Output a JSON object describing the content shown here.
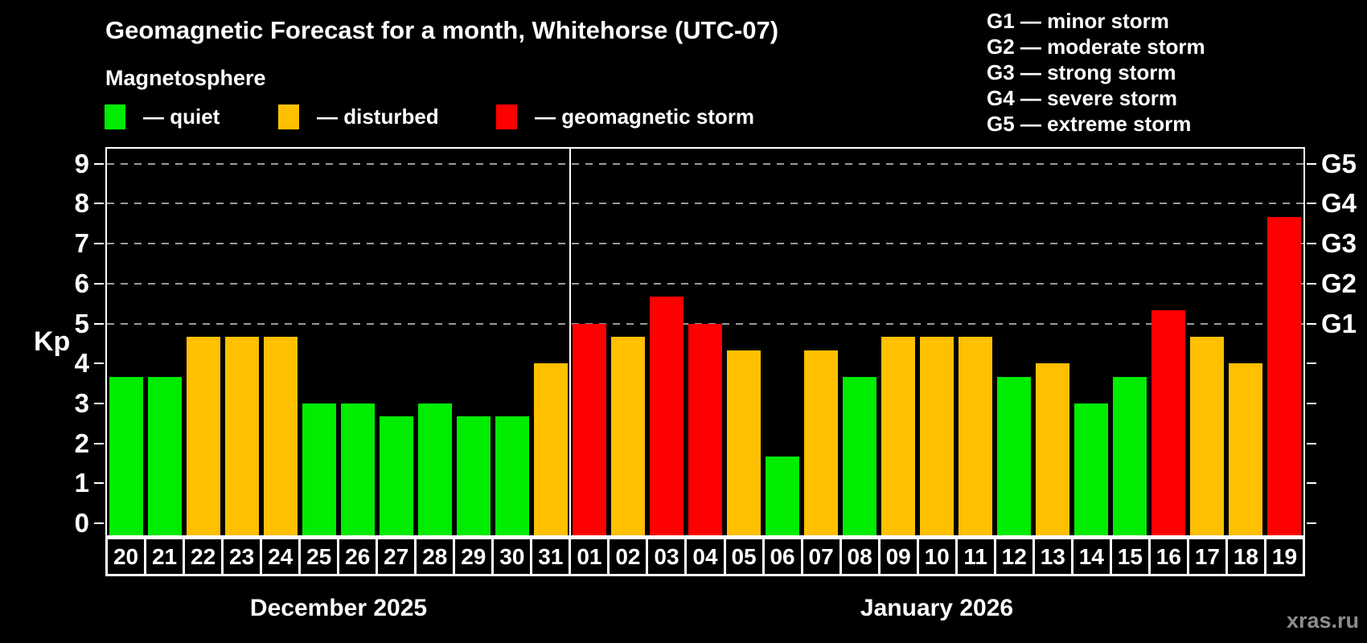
{
  "watermark": "xras.ru",
  "chart_data": {
    "type": "bar",
    "title": "Geomagnetic Forecast for a month, Whitehorse (UTC-07)",
    "subtitle": "Magnetosphere",
    "ylabel": "Kp",
    "ylim": [
      0,
      9.4
    ],
    "yticks": [
      0,
      1,
      2,
      3,
      4,
      5,
      6,
      7,
      8,
      9
    ],
    "grid_kp": [
      5,
      6,
      7,
      8,
      9
    ],
    "grid_on": true,
    "legend_position": "top-left",
    "legend": [
      {
        "status": "quiet",
        "label": "— quiet",
        "color": "#00ec00"
      },
      {
        "status": "disturbed",
        "label": "— disturbed",
        "color": "#ffc000"
      },
      {
        "status": "storm",
        "label": "— geomagnetic storm",
        "color": "#ff0000"
      }
    ],
    "g_legend": [
      {
        "code": "G1",
        "label": "G1 — minor storm",
        "kp": 5
      },
      {
        "code": "G2",
        "label": "G2 — moderate storm",
        "kp": 6
      },
      {
        "code": "G3",
        "label": "G3 — strong storm",
        "kp": 7
      },
      {
        "code": "G4",
        "label": "G4 — severe storm",
        "kp": 8
      },
      {
        "code": "G5",
        "label": "G5 — extreme storm",
        "kp": 9
      }
    ],
    "months": [
      {
        "label": "December 2025",
        "points": [
          {
            "day": "20",
            "kp": 3.67,
            "status": "quiet"
          },
          {
            "day": "21",
            "kp": 3.67,
            "status": "quiet"
          },
          {
            "day": "22",
            "kp": 4.67,
            "status": "disturbed"
          },
          {
            "day": "23",
            "kp": 4.67,
            "status": "disturbed"
          },
          {
            "day": "24",
            "kp": 4.67,
            "status": "disturbed"
          },
          {
            "day": "25",
            "kp": 3.0,
            "status": "quiet"
          },
          {
            "day": "26",
            "kp": 3.0,
            "status": "quiet"
          },
          {
            "day": "27",
            "kp": 2.67,
            "status": "quiet"
          },
          {
            "day": "28",
            "kp": 3.0,
            "status": "quiet"
          },
          {
            "day": "29",
            "kp": 2.67,
            "status": "quiet"
          },
          {
            "day": "30",
            "kp": 2.67,
            "status": "quiet"
          },
          {
            "day": "31",
            "kp": 4.0,
            "status": "disturbed"
          }
        ]
      },
      {
        "label": "January 2026",
        "points": [
          {
            "day": "01",
            "kp": 5.0,
            "status": "storm"
          },
          {
            "day": "02",
            "kp": 4.67,
            "status": "disturbed"
          },
          {
            "day": "03",
            "kp": 5.67,
            "status": "storm"
          },
          {
            "day": "04",
            "kp": 5.0,
            "status": "storm"
          },
          {
            "day": "05",
            "kp": 4.33,
            "status": "disturbed"
          },
          {
            "day": "06",
            "kp": 1.67,
            "status": "quiet"
          },
          {
            "day": "07",
            "kp": 4.33,
            "status": "disturbed"
          },
          {
            "day": "08",
            "kp": 3.67,
            "status": "quiet"
          },
          {
            "day": "09",
            "kp": 4.67,
            "status": "disturbed"
          },
          {
            "day": "10",
            "kp": 4.67,
            "status": "disturbed"
          },
          {
            "day": "11",
            "kp": 4.67,
            "status": "disturbed"
          },
          {
            "day": "12",
            "kp": 3.67,
            "status": "quiet"
          },
          {
            "day": "13",
            "kp": 4.0,
            "status": "disturbed"
          },
          {
            "day": "14",
            "kp": 3.0,
            "status": "quiet"
          },
          {
            "day": "15",
            "kp": 3.67,
            "status": "quiet"
          },
          {
            "day": "16",
            "kp": 5.33,
            "status": "storm"
          },
          {
            "day": "17",
            "kp": 4.67,
            "status": "disturbed"
          },
          {
            "day": "18",
            "kp": 4.0,
            "status": "disturbed"
          },
          {
            "day": "19",
            "kp": 7.67,
            "status": "storm"
          }
        ]
      }
    ]
  }
}
